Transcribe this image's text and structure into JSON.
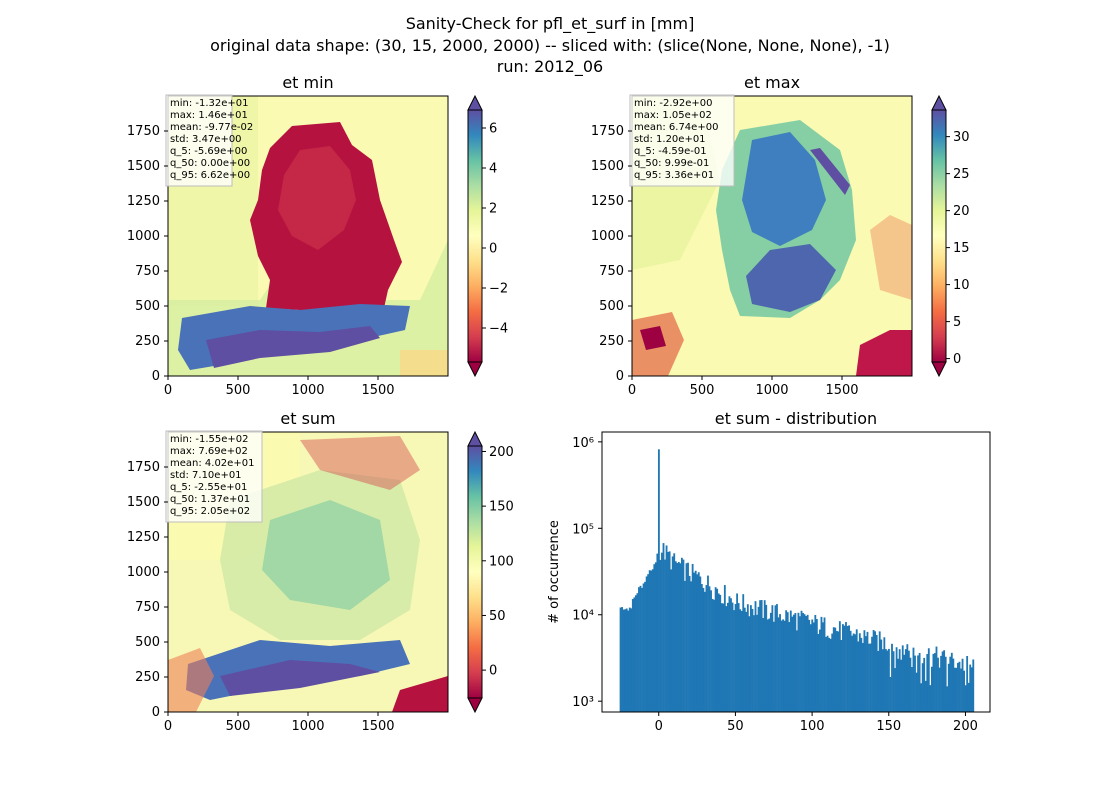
{
  "figure": {
    "title_lines": [
      "Sanity-Check for pfl_et_surf in [mm]",
      "original data shape: (30, 15, 2000, 2000) -- sliced with: (slice(None, None, None), -1)",
      "run: 2012_06"
    ]
  },
  "chart_data": [
    {
      "type": "heatmap",
      "title": "et min",
      "xlim": [
        0,
        2000
      ],
      "ylim": [
        0,
        2000
      ],
      "xticks": [
        "0",
        "500",
        "1000",
        "1500"
      ],
      "yticks": [
        "0",
        "250",
        "500",
        "750",
        "1000",
        "1250",
        "1500",
        "1750"
      ],
      "colorbar": {
        "range": [
          -5.7,
          6.9
        ],
        "ticks": [
          "−4",
          "−2",
          "0",
          "2",
          "4",
          "6"
        ],
        "tick_values": [
          -4,
          -2,
          0,
          2,
          4,
          6
        ],
        "extend": "both",
        "cmap": "Spectral"
      },
      "stats": [
        "min: -1.32e+01",
        "max: 1.46e+01",
        "mean: -9.77e-02",
        "std: 3.47e+00",
        "q_5: -5.69e+00",
        "q_50: 0.00e+00",
        "q_95: 6.62e+00"
      ]
    },
    {
      "type": "heatmap",
      "title": "et max",
      "xlim": [
        0,
        2000
      ],
      "ylim": [
        0,
        2000
      ],
      "xticks": [
        "0",
        "500",
        "1000",
        "1500"
      ],
      "yticks": [
        "0",
        "250",
        "500",
        "750",
        "1000",
        "1250",
        "1500",
        "1750"
      ],
      "colorbar": {
        "range": [
          -0.46,
          33.6
        ],
        "ticks": [
          "0",
          "5",
          "10",
          "15",
          "20",
          "25",
          "30"
        ],
        "tick_values": [
          0,
          5,
          10,
          15,
          20,
          25,
          30
        ],
        "extend": "both",
        "cmap": "Spectral"
      },
      "stats": [
        "min: -2.92e+00",
        "max: 1.05e+02",
        "mean: 6.74e+00",
        "std: 1.20e+01",
        "q_5: -4.59e-01",
        "q_50: 9.99e-01",
        "q_95: 3.36e+01"
      ]
    },
    {
      "type": "heatmap",
      "title": "et sum",
      "xlim": [
        0,
        2000
      ],
      "ylim": [
        0,
        2000
      ],
      "xticks": [
        "0",
        "500",
        "1000",
        "1500"
      ],
      "yticks": [
        "0",
        "250",
        "500",
        "750",
        "1000",
        "1250",
        "1500",
        "1750"
      ],
      "colorbar": {
        "range": [
          -25.5,
          205
        ],
        "ticks": [
          "0",
          "50",
          "100",
          "150",
          "200"
        ],
        "tick_values": [
          0,
          50,
          100,
          150,
          200
        ],
        "extend": "both",
        "cmap": "Spectral"
      },
      "stats": [
        "min: -1.55e+02",
        "max: 7.69e+02",
        "mean: 4.02e+01",
        "std: 7.10e+01",
        "q_5: -2.55e+01",
        "q_50: 1.37e+01",
        "q_95: 2.05e+02"
      ]
    },
    {
      "type": "bar",
      "title": "et sum - distribution",
      "ylabel": "# of occurrence",
      "xlim": [
        -37,
        216
      ],
      "ylim": [
        750,
        1300000
      ],
      "yscale": "log",
      "xticks": [
        "0",
        "50",
        "100",
        "150",
        "200"
      ],
      "xtick_values": [
        0,
        50,
        100,
        150,
        200
      ],
      "yticks": [
        "10³",
        "10⁴",
        "10⁵",
        "10⁶"
      ],
      "ytick_values": [
        1000,
        10000,
        100000,
        1000000
      ],
      "color": "#1f77b4",
      "bin_range": [
        -25.5,
        205
      ],
      "bin_width": 1
    }
  ]
}
